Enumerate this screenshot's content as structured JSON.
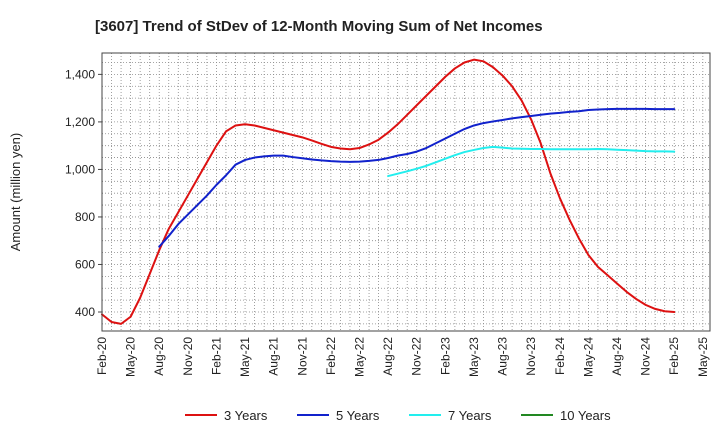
{
  "chart_data": {
    "type": "line",
    "title": "[3607]  Trend of StDev of 12-Month Moving Sum of Net Incomes",
    "xlabel": "",
    "ylabel": "Amount (million yen)",
    "ylim": [
      320,
      1490
    ],
    "y_ticks": [
      "400",
      "600",
      "800",
      "1,000",
      "1,200",
      "1,400"
    ],
    "x_ticks": [
      "Feb-20",
      "May-20",
      "Aug-20",
      "Nov-20",
      "Feb-21",
      "May-21",
      "Aug-21",
      "Nov-21",
      "Feb-22",
      "May-22",
      "Aug-22",
      "Nov-22",
      "Feb-23",
      "May-23",
      "Aug-23",
      "Nov-23",
      "Feb-24",
      "May-24",
      "Aug-24",
      "Nov-24",
      "Feb-25",
      "May-25"
    ],
    "grid": true,
    "legend_position": "bottom",
    "series": [
      {
        "name": "3 Years",
        "color": "#dd1111",
        "start_index": 0,
        "values": [
          390,
          358,
          350,
          380,
          460,
          560,
          660,
          750,
          820,
          890,
          960,
          1030,
          1100,
          1160,
          1185,
          1190,
          1185,
          1175,
          1165,
          1155,
          1145,
          1135,
          1122,
          1108,
          1095,
          1088,
          1085,
          1090,
          1105,
          1125,
          1155,
          1190,
          1230,
          1270,
          1310,
          1350,
          1390,
          1425,
          1450,
          1462,
          1455,
          1430,
          1395,
          1350,
          1290,
          1210,
          1110,
          985,
          880,
          790,
          710,
          640,
          590,
          555,
          520,
          485,
          455,
          430,
          413,
          403,
          400
        ]
      },
      {
        "name": "5 Years",
        "color": "#1122cc",
        "start_index": 6,
        "values": [
          675,
          720,
          770,
          810,
          850,
          890,
          935,
          975,
          1020,
          1040,
          1050,
          1055,
          1058,
          1058,
          1052,
          1047,
          1042,
          1038,
          1035,
          1033,
          1032,
          1033,
          1036,
          1040,
          1048,
          1058,
          1065,
          1075,
          1090,
          1110,
          1130,
          1150,
          1170,
          1185,
          1195,
          1202,
          1208,
          1215,
          1220,
          1225,
          1230,
          1235,
          1238,
          1242,
          1245,
          1250,
          1252,
          1254,
          1255,
          1255,
          1255,
          1255,
          1254,
          1254,
          1254
        ]
      },
      {
        "name": "7 Years",
        "color": "#22eeee",
        "start_index": 30,
        "values": [
          972,
          982,
          992,
          1003,
          1015,
          1030,
          1045,
          1060,
          1073,
          1082,
          1090,
          1095,
          1092,
          1088,
          1087,
          1086,
          1086,
          1085,
          1085,
          1085,
          1085,
          1085,
          1086,
          1085,
          1083,
          1081,
          1079,
          1077,
          1076,
          1076,
          1075
        ]
      },
      {
        "name": "10 Years",
        "color": "#228822",
        "start_index": 0,
        "values": []
      }
    ]
  }
}
